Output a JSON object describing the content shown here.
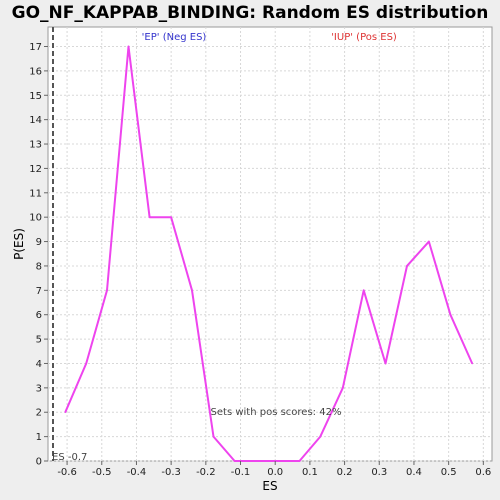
{
  "chart_data": {
    "type": "line",
    "title": "GO_NF_KAPPAB_BINDING: Random ES distribution",
    "xlabel": "ES",
    "ylabel": "P(ES)",
    "xlim": [
      -0.655,
      0.625
    ],
    "ylim": [
      0,
      17.8
    ],
    "xticks": [
      -0.6,
      -0.5,
      -0.4,
      -0.3,
      -0.2,
      -0.1,
      0.0,
      0.1,
      0.2,
      0.3,
      0.4,
      0.5,
      0.6
    ],
    "xtick_labels": [
      "-0.6",
      "-0.5",
      "-0.4",
      "-0.3",
      "-0.2",
      "-0.1",
      "0.0",
      "0.1",
      "0.2",
      "0.3",
      "0.4",
      "0.5",
      "0.6"
    ],
    "yticks": [
      0,
      1,
      2,
      3,
      4,
      5,
      6,
      7,
      8,
      9,
      10,
      11,
      12,
      13,
      14,
      15,
      16,
      17
    ],
    "ytick_labels": [
      "0",
      "1",
      "2",
      "3",
      "4",
      "5",
      "6",
      "7",
      "8",
      "9",
      "10",
      "11",
      "12",
      "13",
      "14",
      "15",
      "16",
      "17"
    ],
    "grid": true,
    "series": [
      {
        "color": "#ee44ee",
        "x": [
          -0.605,
          -0.545,
          -0.485,
          -0.423,
          -0.362,
          -0.3,
          -0.24,
          -0.178,
          -0.117,
          -0.055,
          0.007,
          0.07,
          0.13,
          0.195,
          0.255,
          0.318,
          0.38,
          0.443,
          0.505,
          0.568
        ],
        "y": [
          2,
          4,
          7,
          17,
          10,
          10,
          7,
          1,
          0,
          0,
          0,
          0,
          1,
          3,
          7,
          4,
          8,
          9,
          6,
          4
        ]
      }
    ],
    "observed_es": -0.7,
    "observed_es_label": "ES -0.7",
    "observed_es_color": "#555555",
    "annotations": {
      "neg_label": "'EP' (Neg ES)",
      "neg_color": "#3333cc",
      "pos_label": "'IUP' (Pos ES)",
      "pos_color": "#dd3333",
      "pos_scores_label": "Sets with pos scores: 42%"
    }
  }
}
